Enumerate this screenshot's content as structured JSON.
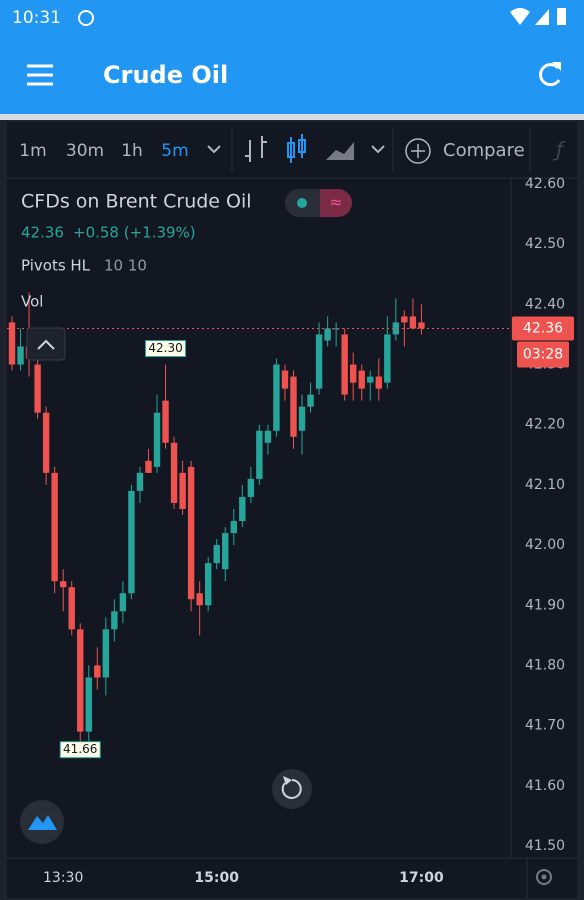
{
  "status_bar": {
    "time": "10:31"
  },
  "app_bar": {
    "title": "Crude Oil"
  },
  "toolbar": {
    "intervals": [
      "1m",
      "30m",
      "1h",
      "5m"
    ],
    "selected": 3,
    "compare": "Compare"
  },
  "legend": {
    "symbol": "CFDs on Brent Crude Oil",
    "price": "42.36",
    "change": "+0.58 (+1.39%)",
    "indicator": "Pivots HL",
    "indicator_params": "10 10",
    "volume": "Vol"
  },
  "chart_data": {
    "type": "candlestick",
    "x": [
      "13:00",
      "13:05",
      "13:10",
      "13:15",
      "13:20",
      "13:25",
      "13:30",
      "13:35",
      "13:40",
      "13:45",
      "13:50",
      "13:55",
      "14:00",
      "14:05",
      "14:10",
      "14:15",
      "14:20",
      "14:25",
      "14:30",
      "14:35",
      "14:40",
      "14:45",
      "14:50",
      "14:55",
      "15:00",
      "15:05",
      "15:10",
      "15:15",
      "15:20",
      "15:25",
      "15:30",
      "15:35",
      "15:40",
      "15:45",
      "15:50",
      "15:55",
      "16:00",
      "16:05",
      "16:10",
      "16:15",
      "16:20",
      "16:25",
      "16:30",
      "16:35",
      "16:40",
      "16:45",
      "16:50",
      "16:55",
      "17:00"
    ],
    "open": [
      42.37,
      42.3,
      42.33,
      42.3,
      42.22,
      42.12,
      41.94,
      41.93,
      41.86,
      41.69,
      41.8,
      41.78,
      41.86,
      41.89,
      41.92,
      42.09,
      42.14,
      42.13,
      42.24,
      42.17,
      42.12,
      42.13,
      41.92,
      41.9,
      41.97,
      41.96,
      42.02,
      42.04,
      42.08,
      42.11,
      42.17,
      42.19,
      42.29,
      42.28,
      42.19,
      42.23,
      42.26,
      42.34,
      42.36,
      42.35,
      42.3,
      42.29,
      42.27,
      42.28,
      42.27,
      42.35,
      42.38,
      42.38,
      42.37
    ],
    "high": [
      42.38,
      42.36,
      42.42,
      42.31,
      42.23,
      42.13,
      41.96,
      41.94,
      41.87,
      41.8,
      41.83,
      41.88,
      41.91,
      41.94,
      42.1,
      42.13,
      42.16,
      42.25,
      42.3,
      42.18,
      42.14,
      42.14,
      41.94,
      41.98,
      42.01,
      42.03,
      42.06,
      42.1,
      42.13,
      42.2,
      42.2,
      42.31,
      42.3,
      42.29,
      42.25,
      42.27,
      42.37,
      42.38,
      42.37,
      42.36,
      42.32,
      42.3,
      42.29,
      42.31,
      42.38,
      42.41,
      42.39,
      42.41,
      42.4
    ],
    "low": [
      42.29,
      42.29,
      42.28,
      42.21,
      42.1,
      41.92,
      41.89,
      41.85,
      41.66,
      41.67,
      41.76,
      41.75,
      41.84,
      41.87,
      41.91,
      42.07,
      42.12,
      42.12,
      42.16,
      42.06,
      42.05,
      41.89,
      41.85,
      41.89,
      41.96,
      41.94,
      42.0,
      42.03,
      42.07,
      42.1,
      42.15,
      42.18,
      42.24,
      42.16,
      42.15,
      42.22,
      42.25,
      42.33,
      42.33,
      42.24,
      42.24,
      42.24,
      42.24,
      42.24,
      42.26,
      42.34,
      42.33,
      42.36,
      42.35
    ],
    "close": [
      42.3,
      42.33,
      42.31,
      42.22,
      42.12,
      41.94,
      41.93,
      41.86,
      41.69,
      41.78,
      41.78,
      41.86,
      41.89,
      41.92,
      42.09,
      42.12,
      42.12,
      42.22,
      42.17,
      42.07,
      42.06,
      41.91,
      41.9,
      41.97,
      42.0,
      42.02,
      42.04,
      42.08,
      42.11,
      42.19,
      42.19,
      42.3,
      42.26,
      42.18,
      42.23,
      42.25,
      42.35,
      42.36,
      42.36,
      42.25,
      42.27,
      42.26,
      42.28,
      42.26,
      42.35,
      42.37,
      42.37,
      42.36,
      42.36
    ],
    "up_color": "#26a69a",
    "down_color": "#ef5350",
    "ylim": [
      41.48,
      42.61
    ],
    "yticks": [
      {
        "value": 42.6,
        "label": "42.60"
      },
      {
        "value": 42.5,
        "label": "42.50"
      },
      {
        "value": 42.4,
        "label": "42.40"
      },
      {
        "value": 42.3,
        "label": "42.30"
      },
      {
        "value": 42.2,
        "label": "42.20"
      },
      {
        "value": 42.1,
        "label": "42.10"
      },
      {
        "value": 42.0,
        "label": "42.00"
      },
      {
        "value": 41.9,
        "label": "41.90"
      },
      {
        "value": 41.8,
        "label": "41.80"
      },
      {
        "value": 41.7,
        "label": "41.70"
      },
      {
        "value": 41.6,
        "label": "41.60"
      },
      {
        "value": 41.5,
        "label": "41.50"
      }
    ],
    "xticks": [
      "13:30",
      "15:00",
      "17:00"
    ],
    "grid": false,
    "last_price": 42.36,
    "countdown": "03:28",
    "annotations": [
      {
        "x": "14:30",
        "value": 42.3,
        "label": "42.30",
        "position": "above"
      },
      {
        "x": "13:40",
        "value": 41.66,
        "position": "below"
      }
    ]
  }
}
